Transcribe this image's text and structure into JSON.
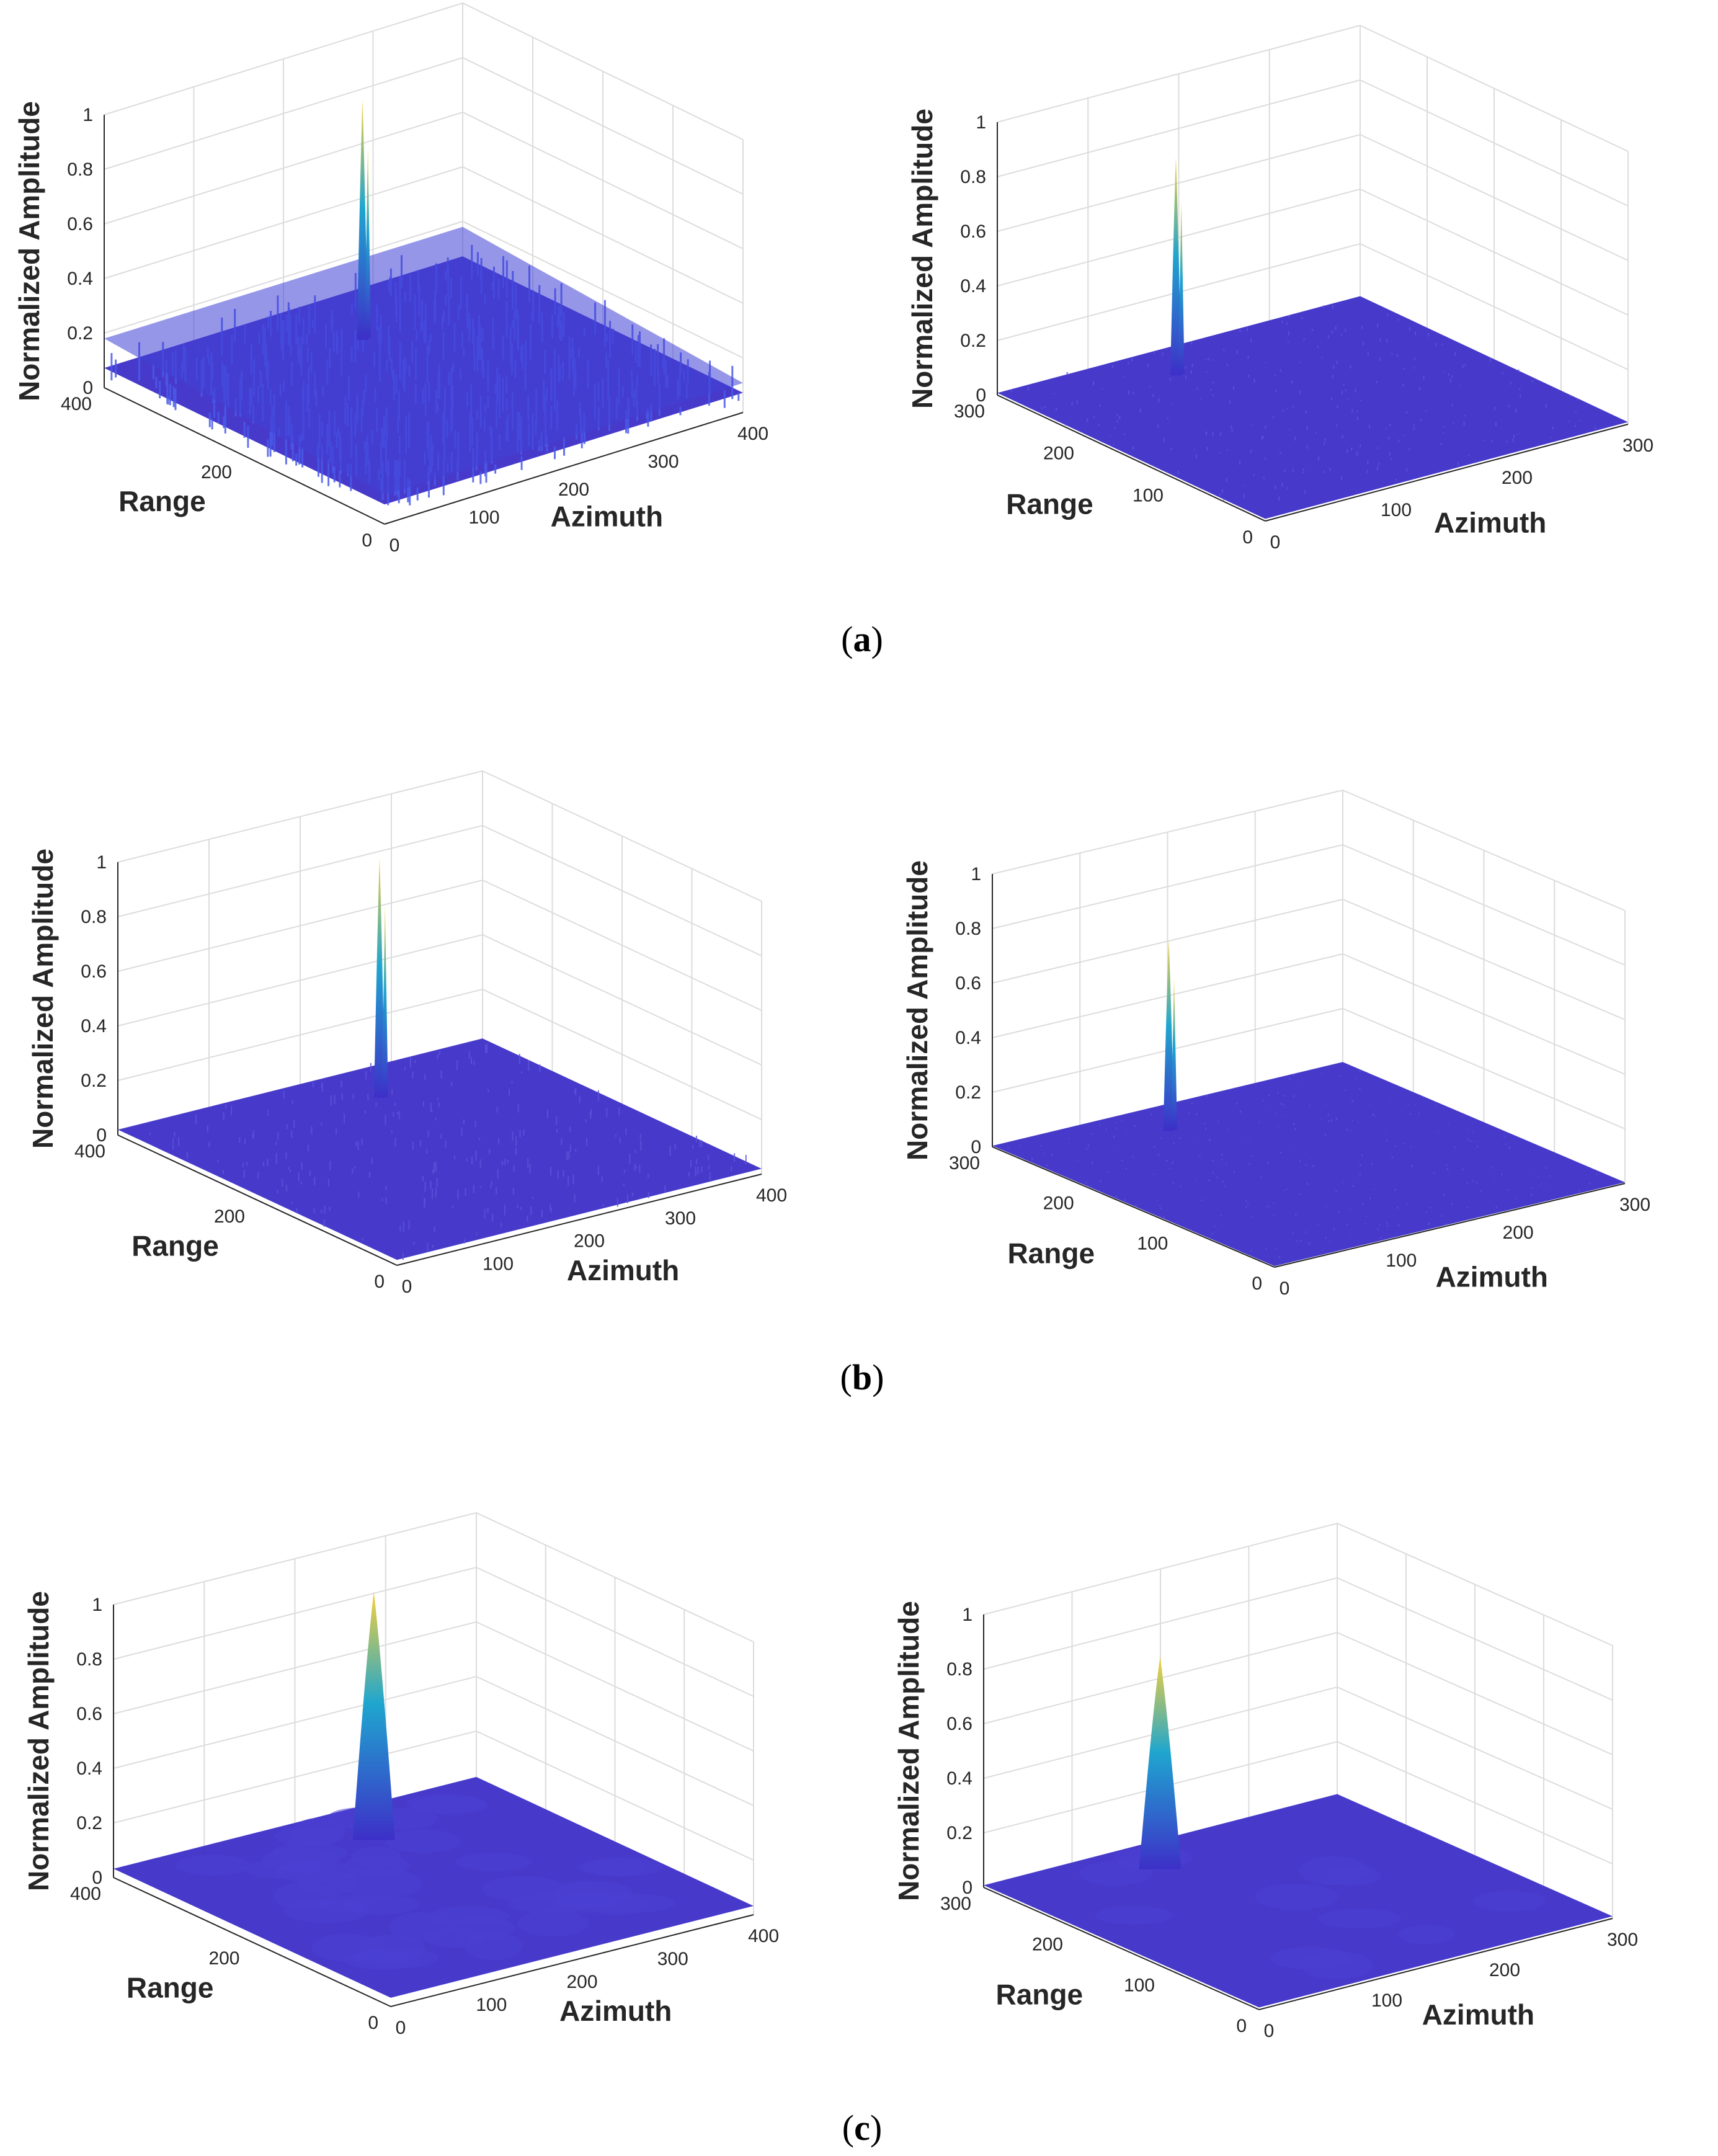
{
  "panels": [
    {
      "caption": "(a)",
      "letter": "a"
    },
    {
      "caption": "(b)",
      "letter": "b"
    },
    {
      "caption": "(c)",
      "letter": "c"
    }
  ],
  "colormap": {
    "low": "#3d2fc8",
    "mid": "#1fa6cf",
    "high": "#f7d13a"
  },
  "chart_data": [
    {
      "id": "a-left",
      "type": "surface3d",
      "zlabel": "Normalized Amplitude",
      "xlabel": "Azimuth",
      "ylabel": "Range",
      "zticks": [
        "0",
        "0.2",
        "0.4",
        "0.6",
        "0.8",
        "1"
      ],
      "xticks": [
        "0",
        "100",
        "200",
        "300",
        "400"
      ],
      "yticks": [
        "0",
        "200",
        "400"
      ],
      "xlim": [
        0,
        400
      ],
      "ylim": [
        0,
        400
      ],
      "zlim": [
        0,
        1
      ],
      "peak": 0.9,
      "peak_azimuth": 235,
      "noise_floor": 0.18,
      "surface": "spiky"
    },
    {
      "id": "a-right",
      "type": "surface3d",
      "zlabel": "Normalized Amplitude",
      "xlabel": "Azimuth",
      "ylabel": "Range",
      "zticks": [
        "0",
        "0.2",
        "0.4",
        "0.6",
        "0.8",
        "1"
      ],
      "xticks": [
        "0",
        "100",
        "200",
        "300"
      ],
      "yticks": [
        "0",
        "100",
        "200",
        "300"
      ],
      "xlim": [
        0,
        300
      ],
      "ylim": [
        0,
        300
      ],
      "zlim": [
        0,
        1
      ],
      "peak": 0.82,
      "peak_azimuth": 110,
      "noise_floor": 0.02,
      "surface": "flat"
    },
    {
      "id": "b-left",
      "type": "surface3d",
      "zlabel": "Normalized Amplitude",
      "xlabel": "Azimuth",
      "ylabel": "Range",
      "zticks": [
        "0",
        "0.2",
        "0.4",
        "0.6",
        "0.8",
        "1"
      ],
      "xticks": [
        "0",
        "100",
        "200",
        "300",
        "400"
      ],
      "yticks": [
        "0",
        "200",
        "400"
      ],
      "xlim": [
        0,
        400
      ],
      "ylim": [
        0,
        400
      ],
      "zlim": [
        0,
        1
      ],
      "peak": 0.9,
      "peak_azimuth": 235,
      "noise_floor": 0.05,
      "surface": "low-noise"
    },
    {
      "id": "b-right",
      "type": "surface3d",
      "zlabel": "Normalized Amplitude",
      "xlabel": "Azimuth",
      "ylabel": "Range",
      "zticks": [
        "0",
        "0.2",
        "0.4",
        "0.6",
        "0.8",
        "1"
      ],
      "xticks": [
        "0",
        "100",
        "200",
        "300"
      ],
      "yticks": [
        "0",
        "100",
        "200",
        "300"
      ],
      "xlim": [
        0,
        300
      ],
      "ylim": [
        0,
        300
      ],
      "zlim": [
        0,
        1
      ],
      "peak": 0.72,
      "peak_azimuth": 110,
      "noise_floor": 0.01,
      "surface": "flat"
    },
    {
      "id": "c-left",
      "type": "surface3d",
      "zlabel": "Normalized Amplitude",
      "xlabel": "Azimuth",
      "ylabel": "Range",
      "zticks": [
        "0",
        "0.2",
        "0.4",
        "0.6",
        "0.8",
        "1"
      ],
      "xticks": [
        "0",
        "100",
        "200",
        "300",
        "400"
      ],
      "yticks": [
        "0",
        "200",
        "400"
      ],
      "xlim": [
        0,
        400
      ],
      "ylim": [
        0,
        400
      ],
      "zlim": [
        0,
        1
      ],
      "peak": 0.93,
      "peak_azimuth": 235,
      "noise_floor": 0.08,
      "surface": "smooth-wavy"
    },
    {
      "id": "c-right",
      "type": "surface3d",
      "zlabel": "Normalized Amplitude",
      "xlabel": "Azimuth",
      "ylabel": "Range",
      "zticks": [
        "0",
        "0.2",
        "0.4",
        "0.6",
        "0.8",
        "1"
      ],
      "xticks": [
        "0",
        "100",
        "200",
        "300"
      ],
      "yticks": [
        "0",
        "100",
        "200",
        "300"
      ],
      "xlim": [
        0,
        300
      ],
      "ylim": [
        0,
        300
      ],
      "zlim": [
        0,
        1
      ],
      "peak": 0.8,
      "peak_azimuth": 110,
      "noise_floor": 0.02,
      "surface": "smooth-peak"
    }
  ]
}
